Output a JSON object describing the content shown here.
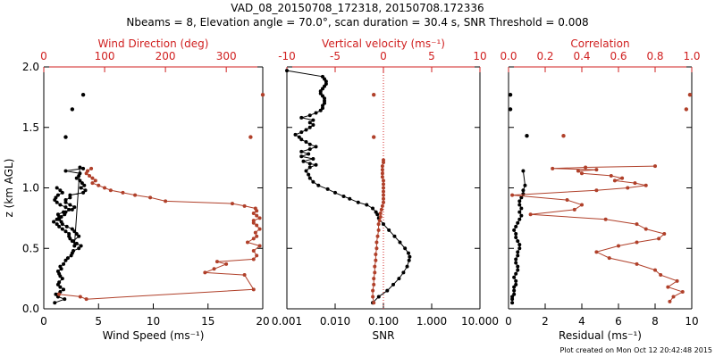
{
  "title": {
    "line1": "VAD_08_20150708_172318, 20150708.172336",
    "line2": "Nbeams = 8, Elevation angle = 70.0°, scan duration = 30.4 s, SNR Threshold = 0.008"
  },
  "footer": "Plot created on Mon Oct 12 20:42:48 2015",
  "colors": {
    "black_series": "#000000",
    "red_series": "#b0402a",
    "red_axis": "#d02020"
  },
  "chart_data": [
    {
      "type": "scatter",
      "panel": "left",
      "ylabel": "z (km AGL)",
      "ylim": [
        0,
        2
      ],
      "yticks": [
        "0.0",
        "0.5",
        "1.0",
        "1.5",
        "2.0"
      ],
      "bottom_axis": {
        "label": "Wind Speed (ms⁻¹)",
        "range": [
          0,
          20
        ],
        "ticks": [
          "0",
          "5",
          "10",
          "15",
          "20"
        ]
      },
      "top_axis": {
        "label": "Wind Direction (deg)",
        "range": [
          0,
          360
        ],
        "ticks": [
          "0",
          "100",
          "200",
          "300"
        ]
      },
      "series": [
        {
          "name": "Wind Speed",
          "axis": "bottom",
          "x": [
            1.0,
            1.9,
            1.3,
            1.1,
            1.5,
            1.8,
            1.5,
            1.3,
            1.4,
            1.7,
            1.5,
            1.4,
            1.3,
            1.6,
            1.5,
            1.8,
            2.0,
            2.2,
            2.5,
            2.6,
            2.7,
            3.2,
            3.4,
            3.0,
            2.6,
            2.4,
            2.3,
            2.3,
            2.0,
            1.7,
            1.4,
            1.2,
            0.9,
            1.2,
            1.4,
            1.3,
            1.8,
            2.6,
            2.8,
            2.4,
            2.0,
            2.0,
            2.4,
            2.4,
            3.6,
            3.8,
            3.4,
            3.7,
            3.5,
            3.3,
            3.0,
            3.2,
            3.3,
            2.0,
            3.6,
            3.3,
            2.8,
            2.7,
            3.2,
            3.0,
            2.8,
            2.6,
            2.1,
            1.7,
            1.6,
            1.4,
            1.6,
            1.9,
            2.0,
            2.3,
            2.0,
            1.5,
            1.2,
            1.0,
            1.1,
            1.3,
            1.7,
            1.5,
            1.2
          ],
          "y": [
            0.05,
            0.08,
            0.1,
            0.12,
            0.14,
            0.16,
            0.18,
            0.2,
            0.22,
            0.25,
            0.27,
            0.29,
            0.31,
            0.33,
            0.35,
            0.37,
            0.4,
            0.42,
            0.44,
            0.46,
            0.48,
            0.5,
            0.52,
            0.54,
            0.56,
            0.58,
            0.6,
            0.62,
            0.64,
            0.66,
            0.68,
            0.7,
            0.72,
            0.74,
            0.76,
            0.78,
            0.8,
            0.82,
            0.84,
            0.86,
            0.88,
            0.9,
            0.92,
            0.94,
            0.96,
            0.98,
            1.0,
            1.02,
            1.04,
            1.06,
            1.08,
            1.1,
            1.12,
            1.14,
            1.16,
            1.17,
            0.52,
            0.56,
            0.6,
            0.62,
            0.64,
            0.66,
            0.68,
            0.7,
            0.72,
            0.74,
            0.76,
            0.78,
            0.8,
            0.82,
            0.84,
            0.86,
            0.88,
            0.9,
            0.92,
            0.94,
            0.96,
            0.98,
            1.0
          ],
          "isolated": [
            {
              "x": 2.0,
              "y": 1.42
            },
            {
              "x": 2.6,
              "y": 1.65
            },
            {
              "x": 3.6,
              "y": 1.77
            }
          ]
        },
        {
          "name": "Wind Direction",
          "axis": "top",
          "x": [
            25,
            60,
            70,
            345,
            330,
            265,
            280,
            300,
            285,
            345,
            350,
            345,
            355,
            335,
            345,
            350,
            348,
            355,
            350,
            345,
            345,
            355,
            350,
            345,
            350,
            348,
            330,
            310,
            200,
            175,
            150,
            130,
            110,
            100,
            90,
            80,
            85,
            80,
            75,
            70,
            72,
            78
          ],
          "y": [
            0.12,
            0.1,
            0.08,
            0.16,
            0.28,
            0.3,
            0.33,
            0.37,
            0.39,
            0.41,
            0.44,
            0.48,
            0.52,
            0.55,
            0.58,
            0.6,
            0.63,
            0.66,
            0.69,
            0.71,
            0.73,
            0.75,
            0.77,
            0.79,
            0.81,
            0.83,
            0.85,
            0.87,
            0.89,
            0.92,
            0.94,
            0.96,
            0.98,
            1.0,
            1.02,
            1.04,
            1.06,
            1.08,
            1.1,
            1.12,
            1.14,
            1.16
          ],
          "isolated": [
            {
              "x": 340,
              "y": 1.42
            },
            {
              "x": 360,
              "y": 1.77
            }
          ]
        }
      ]
    },
    {
      "type": "scatter",
      "panel": "middle",
      "ylim": [
        0,
        2
      ],
      "bottom_axis": {
        "label": "SNR",
        "range": [
          0.001,
          10
        ],
        "scale": "log",
        "ticks": [
          "0.001",
          "0.010",
          "0.100",
          "1.000",
          "10.000"
        ]
      },
      "top_axis": {
        "label": "Vertical velocity (ms⁻¹)",
        "range": [
          -10,
          10
        ],
        "ticks": [
          "-10",
          "-5",
          "0",
          "5",
          "10"
        ]
      },
      "reference_line": {
        "axis": "top",
        "value": 0,
        "style": "dotted"
      },
      "series": [
        {
          "name": "SNR",
          "axis": "bottom",
          "x": [
            0.06,
            0.08,
            0.12,
            0.16,
            0.21,
            0.26,
            0.31,
            0.34,
            0.35,
            0.33,
            0.28,
            0.22,
            0.17,
            0.13,
            0.1,
            0.08,
            0.075,
            0.07,
            0.06,
            0.045,
            0.03,
            0.02,
            0.015,
            0.01,
            0.007,
            0.0045,
            0.0035,
            0.003,
            0.0028,
            0.0025,
            0.003,
            0.004,
            0.003,
            0.0022,
            0.0035,
            0.002,
            0.0028,
            0.002,
            0.003,
            0.004,
            0.003,
            0.0025,
            0.002,
            0.0018,
            0.0015,
            0.002,
            0.0025,
            0.003,
            0.0035,
            0.003,
            0.0035,
            0.002,
            0.003,
            0.004,
            0.005,
            0.0055,
            0.0055,
            0.006,
            0.006,
            0.006,
            0.0055,
            0.005,
            0.005,
            0.0055,
            0.006,
            0.0065,
            0.0065,
            0.006,
            0.0055,
            0.001
          ],
          "y": [
            0.05,
            0.1,
            0.15,
            0.2,
            0.25,
            0.3,
            0.35,
            0.4,
            0.43,
            0.46,
            0.5,
            0.55,
            0.6,
            0.65,
            0.7,
            0.75,
            0.78,
            0.8,
            0.83,
            0.86,
            0.88,
            0.91,
            0.93,
            0.96,
            0.99,
            1.02,
            1.05,
            1.08,
            1.11,
            1.14,
            1.17,
            1.19,
            1.2,
            1.22,
            1.24,
            1.26,
            1.28,
            1.3,
            1.32,
            1.34,
            1.36,
            1.38,
            1.4,
            1.42,
            1.44,
            1.46,
            1.48,
            1.5,
            1.52,
            1.54,
            1.56,
            1.58,
            1.6,
            1.62,
            1.64,
            1.66,
            1.68,
            1.7,
            1.72,
            1.74,
            1.76,
            1.78,
            1.8,
            1.82,
            1.84,
            1.86,
            1.88,
            1.9,
            1.92,
            1.97
          ]
        },
        {
          "name": "Vertical velocity",
          "axis": "top",
          "x": [
            -1.0,
            -1.1,
            -1.1,
            -1.0,
            -1.0,
            -0.9,
            -0.9,
            -0.8,
            -0.8,
            -0.7,
            -0.7,
            -0.6,
            -0.5,
            -0.5,
            -0.4,
            -0.3,
            -0.3,
            -0.2,
            -0.1,
            0.0,
            0.0,
            0.0,
            0.0,
            0.0,
            0.0,
            0.0,
            -0.1,
            -0.1,
            -0.1,
            -0.1,
            0.0,
            0.0
          ],
          "y": [
            0.05,
            0.1,
            0.15,
            0.2,
            0.25,
            0.3,
            0.35,
            0.4,
            0.45,
            0.5,
            0.55,
            0.6,
            0.65,
            0.7,
            0.73,
            0.76,
            0.79,
            0.82,
            0.85,
            0.88,
            0.91,
            0.94,
            0.97,
            1.0,
            1.03,
            1.06,
            1.09,
            1.12,
            1.15,
            1.18,
            1.21,
            1.23
          ],
          "isolated": [
            {
              "x": -1.0,
              "y": 1.77
            },
            {
              "x": -1.0,
              "y": 1.42
            }
          ]
        }
      ]
    },
    {
      "type": "scatter",
      "panel": "right",
      "ylim": [
        0,
        2
      ],
      "bottom_axis": {
        "label": "Residual (ms⁻¹)",
        "range": [
          0,
          10
        ],
        "ticks": [
          "0",
          "2",
          "4",
          "6",
          "8",
          "10"
        ]
      },
      "top_axis": {
        "label": "Correlation",
        "range": [
          0,
          1
        ],
        "ticks": [
          "0.0",
          "0.2",
          "0.4",
          "0.6",
          "0.8",
          "1.0"
        ]
      },
      "series": [
        {
          "name": "Residual",
          "axis": "bottom",
          "x": [
            0.2,
            0.2,
            0.2,
            0.3,
            0.3,
            0.3,
            0.4,
            0.4,
            0.3,
            0.4,
            0.5,
            0.5,
            0.4,
            0.4,
            0.5,
            0.5,
            0.6,
            0.6,
            0.5,
            0.4,
            0.4,
            0.3,
            0.4,
            0.5,
            0.6,
            0.7,
            0.6,
            0.7,
            0.6,
            0.6,
            0.7,
            0.8,
            0.8,
            0.9,
            0.8
          ],
          "y": [
            0.05,
            0.08,
            0.1,
            0.12,
            0.15,
            0.18,
            0.2,
            0.23,
            0.26,
            0.29,
            0.32,
            0.35,
            0.38,
            0.41,
            0.44,
            0.47,
            0.5,
            0.53,
            0.56,
            0.59,
            0.62,
            0.65,
            0.68,
            0.71,
            0.74,
            0.77,
            0.8,
            0.83,
            0.86,
            0.89,
            0.92,
            0.95,
            0.98,
            1.02,
            1.14
          ],
          "isolated": [
            {
              "x": 0.1,
              "y": 1.77
            },
            {
              "x": 0.1,
              "y": 1.65
            },
            {
              "x": 1.0,
              "y": 1.43
            }
          ]
        },
        {
          "name": "Correlation",
          "axis": "top",
          "x": [
            0.88,
            0.9,
            0.95,
            0.87,
            0.92,
            0.83,
            0.8,
            0.7,
            0.55,
            0.48,
            0.6,
            0.7,
            0.82,
            0.85,
            0.75,
            0.7,
            0.53,
            0.12,
            0.36,
            0.4,
            0.32,
            0.02,
            0.48,
            0.65,
            0.75,
            0.69,
            0.58,
            0.62,
            0.56,
            0.4,
            0.38,
            0.48,
            0.24,
            0.42,
            0.8
          ],
          "y": [
            0.06,
            0.1,
            0.14,
            0.18,
            0.23,
            0.28,
            0.32,
            0.37,
            0.42,
            0.47,
            0.52,
            0.55,
            0.58,
            0.62,
            0.66,
            0.7,
            0.74,
            0.78,
            0.82,
            0.86,
            0.9,
            0.94,
            0.98,
            1.0,
            1.02,
            1.04,
            1.06,
            1.08,
            1.1,
            1.12,
            1.14,
            1.15,
            1.16,
            1.17,
            1.18
          ],
          "isolated": [
            {
              "x": 0.99,
              "y": 1.77
            },
            {
              "x": 0.97,
              "y": 1.65
            },
            {
              "x": 0.3,
              "y": 1.43
            }
          ]
        }
      ]
    }
  ]
}
